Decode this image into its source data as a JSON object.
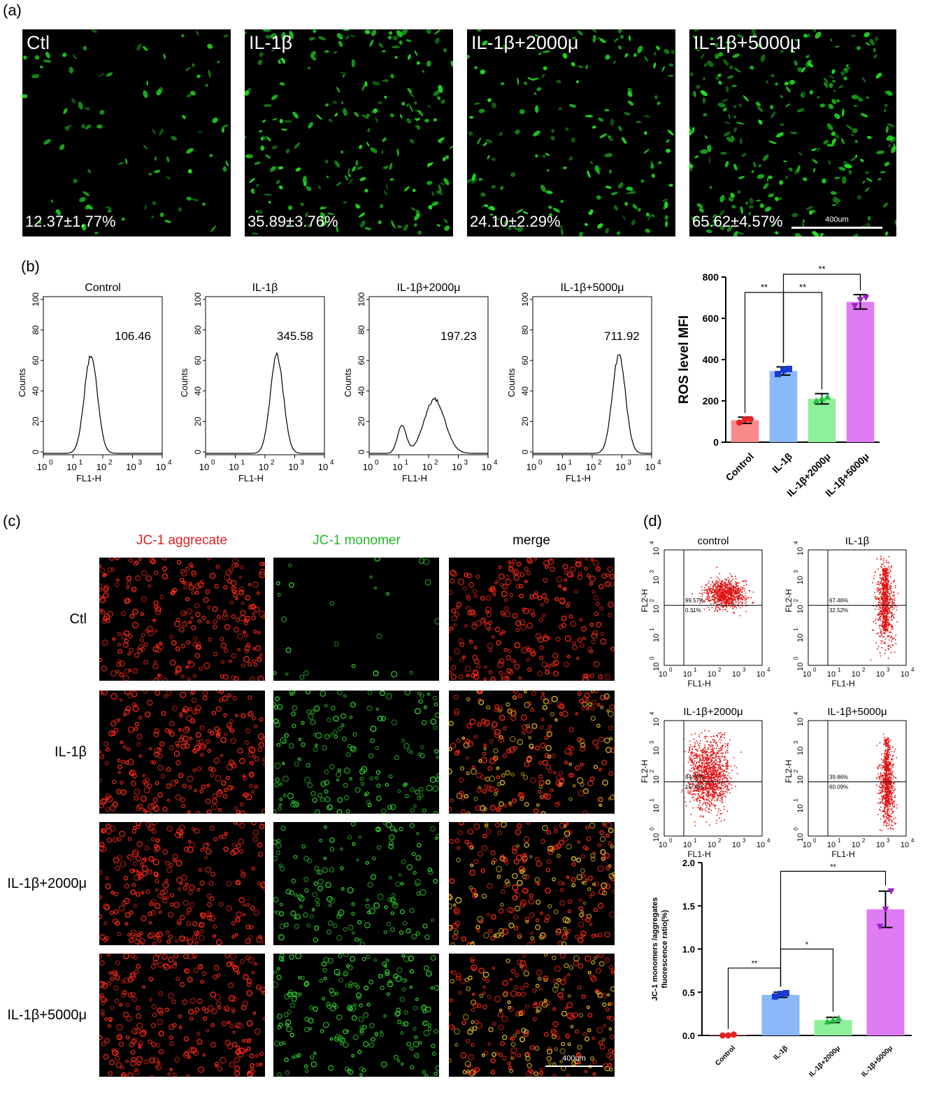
{
  "panel_labels": {
    "a": "(a)",
    "b": "(b)",
    "c": "(c)",
    "d": "(d)"
  },
  "panel_a": {
    "images": [
      {
        "title": "Ctl",
        "value": "12.37±1.77%"
      },
      {
        "title": "IL-1β",
        "value": "35.89±3.76%"
      },
      {
        "title": "IL-1β+2000μ",
        "value": "24.10±2.29%"
      },
      {
        "title": "IL-1β+5000μ",
        "value": "65.62±4.57%"
      }
    ],
    "scale_label": "400um",
    "colors": {
      "cells": "#22dd22",
      "background": "#000000"
    }
  },
  "panel_b": {
    "histograms": [
      {
        "title": "Control",
        "mfi": "106.46"
      },
      {
        "title": "IL-1β",
        "mfi": "345.58"
      },
      {
        "title": "IL-1β+2000μ",
        "mfi": "197.23"
      },
      {
        "title": "IL-1β+5000μ",
        "mfi": "711.92"
      }
    ],
    "xlabel": "FL1-H",
    "ylabel": "Counts",
    "yticks": [
      "0",
      "20",
      "40",
      "60",
      "80",
      "100"
    ],
    "xticks": [
      "10",
      "0",
      "10",
      "1",
      "10",
      "2",
      "10",
      "3",
      "10",
      "4"
    ]
  },
  "panel_c": {
    "headers": [
      {
        "text": "JC-1 aggrecate",
        "color": "#e02020"
      },
      {
        "text": "JC-1 monomer",
        "color": "#22bb22"
      },
      {
        "text": "merge",
        "color": "#000000"
      }
    ],
    "rows": [
      "Ctl",
      "IL-1β",
      "IL-1β+2000μ",
      "IL-1β+5000μ"
    ],
    "scale_label": "400um"
  },
  "panel_d": {
    "scatters": [
      {
        "title": "control",
        "upper": "99.57%",
        "lower": "0.31%"
      },
      {
        "title": "IL-1β",
        "upper": "67.46%",
        "lower": "32.52%"
      },
      {
        "title": "IL-1β+2000μ",
        "upper": "84.70%",
        "lower": "15.30%"
      },
      {
        "title": "IL-1β+5000μ",
        "upper": "39.86%",
        "lower": "60.09%"
      }
    ],
    "xlabel": "FL1-H",
    "ylabel": "FL2-H"
  },
  "chart_data": [
    {
      "type": "bar",
      "categories": [
        "Control",
        "IL-1β",
        "IL-1β+2000μ",
        "IL-1β+5000μ"
      ],
      "values": [
        106,
        345,
        210,
        680
      ],
      "errors": [
        15,
        20,
        25,
        35
      ],
      "points": [
        [
          95,
          110,
          112
        ],
        [
          330,
          350,
          355
        ],
        [
          200,
          212,
          220
        ],
        [
          660,
          690,
          700
        ]
      ],
      "colors": [
        "#f98a8a",
        "#8ab8f8",
        "#8ef09a",
        "#df7cf4"
      ],
      "point_colors": [
        "#e62020",
        "#1a3ad0",
        "#22c040",
        "#9a20c8"
      ],
      "ylabel": "ROS level MFI",
      "ylim": [
        0,
        800
      ],
      "yticks": [
        0,
        200,
        400,
        600,
        800
      ],
      "significance": [
        {
          "from": 0,
          "to": 1,
          "label": "**"
        },
        {
          "from": 1,
          "to": 2,
          "label": "**"
        },
        {
          "from": 1,
          "to": 3,
          "label": "**"
        }
      ]
    },
    {
      "type": "bar",
      "categories": [
        "Control",
        "IL-1β",
        "IL-1β+2000μ",
        "IL-1β+5000μ"
      ],
      "values": [
        0.005,
        0.47,
        0.18,
        1.46
      ],
      "errors": [
        0.005,
        0.03,
        0.03,
        0.21
      ],
      "points": [
        [
          0.0,
          0.0,
          0.01
        ],
        [
          0.45,
          0.48,
          0.49
        ],
        [
          0.16,
          0.18,
          0.2
        ],
        [
          1.26,
          1.46,
          1.67
        ]
      ],
      "colors": [
        "#f98a8a",
        "#8ab8f8",
        "#8ef09a",
        "#df7cf4"
      ],
      "point_colors": [
        "#e62020",
        "#1a3ad0",
        "#22c040",
        "#9a20c8"
      ],
      "ylabel": "JC-1 monomers /aggregates fluorescence ratio(%)",
      "ylim": [
        0,
        2.0
      ],
      "yticks": [
        "0.0",
        "0.5",
        "1.0",
        "1.5",
        "2.0"
      ],
      "significance": [
        {
          "from": 0,
          "to": 1,
          "label": "**"
        },
        {
          "from": 1,
          "to": 2,
          "label": "*"
        },
        {
          "from": 1,
          "to": 3,
          "label": "**"
        }
      ]
    }
  ]
}
